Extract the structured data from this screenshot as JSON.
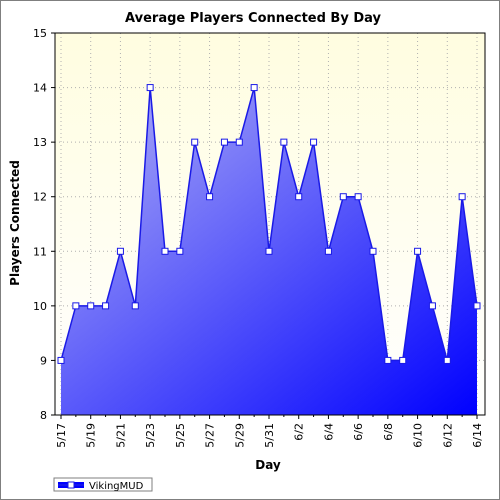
{
  "chart_data": {
    "type": "area",
    "title": "Average Players Connected By Day",
    "xlabel": "Day",
    "ylabel": "Players Connected",
    "ylim": [
      8,
      15
    ],
    "yticks": [
      8,
      9,
      10,
      11,
      12,
      13,
      14,
      15
    ],
    "grid": true,
    "legend": "bottom-left",
    "x": [
      "5/17",
      "5/18",
      "5/19",
      "5/20",
      "5/21",
      "5/22",
      "5/23",
      "5/24",
      "5/25",
      "5/26",
      "5/27",
      "5/28",
      "5/29",
      "5/30",
      "5/31",
      "6/1",
      "6/2",
      "6/3",
      "6/4",
      "6/5",
      "6/6",
      "6/7",
      "6/8",
      "6/9",
      "6/10",
      "6/11",
      "6/12",
      "6/13",
      "6/14"
    ],
    "xtick_labels": [
      "5/17",
      "",
      "5/19",
      "",
      "5/21",
      "",
      "5/23",
      "",
      "5/25",
      "",
      "5/27",
      "",
      "5/29",
      "",
      "5/31",
      "",
      "6/2",
      "",
      "6/4",
      "",
      "6/6",
      "",
      "6/8",
      "",
      "6/10",
      "",
      "6/12",
      "",
      "6/14"
    ],
    "series": [
      {
        "name": "VikingMUD",
        "values": [
          9,
          10,
          10,
          10,
          11,
          10,
          14,
          11,
          11,
          13,
          12,
          13,
          13,
          14,
          11,
          13,
          12,
          13,
          11,
          12,
          12,
          11,
          9,
          9,
          11,
          10,
          9,
          12,
          10
        ]
      }
    ],
    "colors": {
      "plot_bg_top": "#fffde0",
      "plot_bg_bottom": "#ffffff",
      "fill_start": "#b3b3f5",
      "fill_end": "#0000ff",
      "line": "#1a1ae6",
      "marker_fill": "#ffffff",
      "marker_stroke": "#1a1ae6",
      "grid": "#b0b0b0"
    }
  }
}
